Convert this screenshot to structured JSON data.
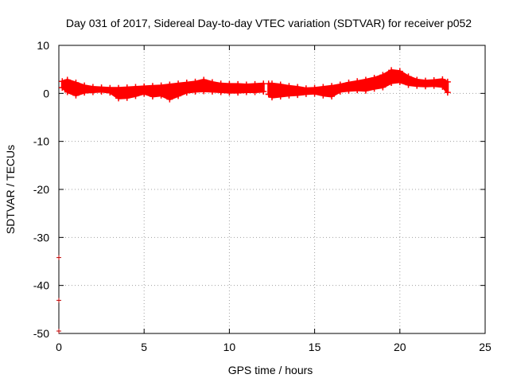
{
  "chart_data": {
    "type": "scatter",
    "title": "Day 031 of 2017, Sidereal Day-to-day VTEC variation (SDTVAR) for receiver p052",
    "xlabel": "GPS time / hours",
    "ylabel": "SDTVAR / TECUs",
    "xlim": [
      0,
      25
    ],
    "ylim": [
      -50,
      10
    ],
    "xticks": [
      0,
      5,
      10,
      15,
      20,
      25
    ],
    "yticks": [
      -50,
      -40,
      -30,
      -20,
      -10,
      0,
      10
    ],
    "grid": true,
    "marker": "plus",
    "series": [
      {
        "name": "SDTVAR",
        "color": "#ff0000",
        "bands": [
          {
            "x": [
              0.2,
              0.5,
              1.0,
              1.5,
              2.0,
              2.5,
              3.0,
              3.5,
              4.0,
              4.5,
              5.0,
              5.5,
              6.0,
              6.5,
              7.0,
              7.5,
              8.0,
              8.5,
              9.0,
              9.5,
              10.0,
              10.5,
              11.0,
              11.5,
              12.0
            ],
            "upper": [
              2.5,
              2.8,
              2.2,
              1.6,
              1.3,
              1.2,
              1.1,
              1.1,
              1.2,
              1.3,
              1.4,
              1.5,
              1.6,
              1.8,
              2.0,
              2.2,
              2.4,
              2.8,
              2.3,
              2.0,
              1.9,
              1.9,
              1.8,
              1.9,
              2.0
            ],
            "lower": [
              1.2,
              0.3,
              -0.4,
              0.2,
              0.3,
              0.4,
              0.2,
              -1.0,
              -0.9,
              -0.5,
              0.0,
              -0.6,
              -0.4,
              -1.2,
              -0.5,
              0.2,
              0.4,
              0.5,
              0.4,
              0.3,
              0.2,
              0.2,
              0.3,
              0.3,
              0.4
            ]
          },
          {
            "x": [
              12.3,
              12.5,
              13.0,
              13.5,
              14.0,
              14.5,
              15.0,
              15.5,
              16.0,
              16.5,
              17.0,
              17.5,
              18.0,
              18.5,
              19.0,
              19.5,
              20.0,
              20.5,
              21.0,
              21.5,
              22.0,
              22.5,
              22.8
            ],
            "upper": [
              2.0,
              2.0,
              1.8,
              1.5,
              1.3,
              1.0,
              1.1,
              1.3,
              1.5,
              1.8,
              2.2,
              2.5,
              2.8,
              3.2,
              3.8,
              4.8,
              4.6,
              3.5,
              2.8,
              2.6,
              2.7,
              2.9,
              2.4
            ],
            "lower": [
              -0.2,
              -0.8,
              -0.6,
              -0.4,
              -0.3,
              -0.1,
              0.0,
              -0.4,
              -0.6,
              0.4,
              0.6,
              0.7,
              0.6,
              1.0,
              1.3,
              2.2,
              2.4,
              1.8,
              1.6,
              1.5,
              1.6,
              1.4,
              0.2
            ]
          }
        ],
        "outliers": [
          {
            "x": 0.0,
            "y": -34.2
          },
          {
            "x": 0.0,
            "y": -43.1
          },
          {
            "x": 0.0,
            "y": -49.5
          }
        ]
      }
    ]
  }
}
